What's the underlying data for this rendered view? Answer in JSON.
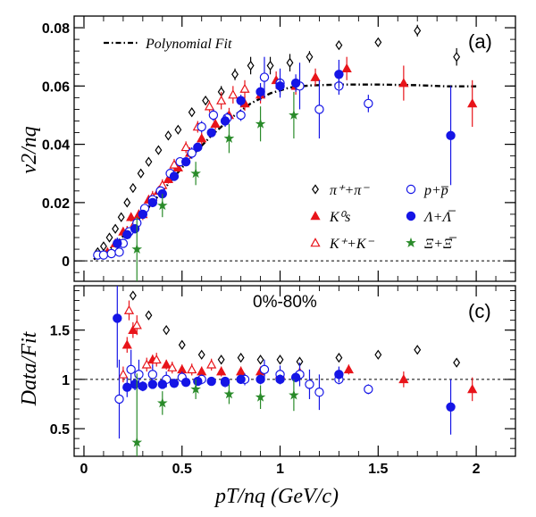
{
  "chart_data": [
    {
      "panel_label": "(a)",
      "type": "scatter",
      "ylabel": "v2/nq",
      "ylim": [
        -0.007,
        0.084
      ],
      "yticks": [
        "0",
        "0.02",
        "0.04",
        "0.06",
        "0.08"
      ],
      "xlim": [
        -0.05,
        2.2
      ],
      "fit_label": "Polynomial Fit",
      "fit_curve": {
        "x": [
          0.05,
          0.15,
          0.25,
          0.35,
          0.45,
          0.55,
          0.65,
          0.75,
          0.85,
          0.95,
          1.05,
          1.15,
          1.3,
          1.5,
          1.7,
          1.85,
          2.0
        ],
        "y": [
          0.0005,
          0.005,
          0.012,
          0.02,
          0.028,
          0.036,
          0.043,
          0.049,
          0.054,
          0.0575,
          0.0595,
          0.0602,
          0.0605,
          0.0605,
          0.0603,
          0.0599,
          0.0599
        ]
      },
      "series": [
        {
          "name": "π⁺+π⁻",
          "marker": "open-diamond",
          "color": "#000000",
          "x": [
            0.07,
            0.1,
            0.13,
            0.16,
            0.19,
            0.22,
            0.25,
            0.29,
            0.33,
            0.38,
            0.43,
            0.48,
            0.55,
            0.62,
            0.7,
            0.77,
            0.85,
            0.95,
            1.05,
            1.15,
            1.3,
            1.5,
            1.7,
            1.9
          ],
          "y": [
            0.003,
            0.005,
            0.008,
            0.011,
            0.015,
            0.02,
            0.025,
            0.03,
            0.034,
            0.038,
            0.043,
            0.045,
            0.051,
            0.055,
            0.058,
            0.064,
            0.067,
            0.067,
            0.068,
            0.07,
            0.074,
            0.075,
            0.079,
            0.07
          ],
          "err": [
            0.0005,
            0.0005,
            0.0005,
            0.0005,
            0.0005,
            0.0006,
            0.0006,
            0.0007,
            0.0007,
            0.0008,
            0.0009,
            0.001,
            0.0012,
            0.0015,
            0.002,
            0.002,
            0.003,
            0.003,
            0.003,
            0.002,
            0.001,
            0.001,
            0.002,
            0.003
          ]
        },
        {
          "name": "K⁰s",
          "marker": "filled-triangle",
          "color": "#e8141a",
          "x": [
            0.12,
            0.16,
            0.2,
            0.24,
            0.28,
            0.33,
            0.38,
            0.43,
            0.48,
            0.54,
            0.6,
            0.67,
            0.74,
            0.82,
            0.9,
            0.98,
            1.08,
            1.18,
            1.34,
            1.63,
            1.98
          ],
          "y": [
            0.003,
            0.006,
            0.01,
            0.015,
            0.016,
            0.021,
            0.024,
            0.028,
            0.032,
            0.037,
            0.042,
            0.047,
            0.05,
            0.054,
            0.057,
            0.062,
            0.06,
            0.063,
            0.066,
            0.061,
            0.054
          ],
          "err": [
            0.001,
            0.0015,
            0.0015,
            0.0015,
            0.0015,
            0.0015,
            0.0015,
            0.0015,
            0.0015,
            0.002,
            0.002,
            0.002,
            0.0025,
            0.0025,
            0.003,
            0.003,
            0.003,
            0.003,
            0.004,
            0.006,
            0.008
          ]
        },
        {
          "name": "K⁺+K⁻",
          "marker": "open-triangle",
          "color": "#e8141a",
          "x": [
            0.22,
            0.26,
            0.3,
            0.35,
            0.4,
            0.46,
            0.52,
            0.58,
            0.64,
            0.7,
            0.76,
            0.82
          ],
          "y": [
            0.01,
            0.013,
            0.016,
            0.022,
            0.026,
            0.033,
            0.039,
            0.046,
            0.053,
            0.055,
            0.057,
            0.059
          ],
          "err": [
            0.002,
            0.002,
            0.002,
            0.002,
            0.002,
            0.002,
            0.002,
            0.002,
            0.002,
            0.003,
            0.003,
            0.003
          ]
        },
        {
          "name": "p+p̅",
          "marker": "open-circle",
          "color": "#1515e6",
          "x": [
            0.07,
            0.1,
            0.14,
            0.18,
            0.2,
            0.23,
            0.27,
            0.31,
            0.35,
            0.39,
            0.44,
            0.49,
            0.55,
            0.6,
            0.66,
            0.73,
            0.8,
            0.92,
            1.0,
            1.1,
            1.2,
            1.3,
            1.45
          ],
          "y": [
            0.002,
            0.002,
            0.0025,
            0.003,
            0.006,
            0.01,
            0.013,
            0.018,
            0.021,
            0.024,
            0.03,
            0.034,
            0.037,
            0.046,
            0.05,
            0.049,
            0.05,
            0.063,
            0.061,
            0.06,
            0.052,
            0.06,
            0.054
          ],
          "err": [
            0.0008,
            0.0008,
            0.0008,
            0.001,
            0.001,
            0.001,
            0.0012,
            0.0015,
            0.0015,
            0.0015,
            0.0015,
            0.0015,
            0.002,
            0.002,
            0.002,
            0.002,
            0.002,
            0.007,
            0.005,
            0.008,
            0.01,
            0.003,
            0.003
          ]
        },
        {
          "name": "Λ+Λ̅",
          "marker": "filled-circle",
          "color": "#1515e6",
          "x": [
            0.17,
            0.22,
            0.26,
            0.3,
            0.35,
            0.4,
            0.46,
            0.52,
            0.58,
            0.65,
            0.72,
            0.8,
            0.9,
            1.0,
            1.08,
            1.3,
            1.87
          ],
          "y": [
            0.006,
            0.009,
            0.011,
            0.016,
            0.02,
            0.023,
            0.029,
            0.034,
            0.039,
            0.044,
            0.048,
            0.055,
            0.058,
            0.06,
            0.061,
            0.064,
            0.043
          ],
          "err": [
            0.002,
            0.0015,
            0.0015,
            0.0015,
            0.0015,
            0.0015,
            0.0015,
            0.0015,
            0.0015,
            0.0015,
            0.002,
            0.002,
            0.003,
            0.003,
            0.003,
            0.005,
            0.017
          ]
        },
        {
          "name": "Ξ+Ξ̅",
          "marker": "star",
          "color": "#2a8b2a",
          "x": [
            0.27,
            0.4,
            0.57,
            0.74,
            0.9,
            1.07
          ],
          "y": [
            0.004,
            0.019,
            0.03,
            0.042,
            0.047,
            0.05
          ],
          "err": [
            0.011,
            0.004,
            0.004,
            0.005,
            0.006,
            0.008
          ]
        }
      ]
    },
    {
      "panel_label": "(c)",
      "type": "scatter",
      "annotation": "0%-80%",
      "xlabel": "pT/nq (GeV/c)",
      "ylabel": "Data/Fit",
      "ylim": [
        0.22,
        1.95
      ],
      "yticks": [
        "0.5",
        "1",
        "1.5"
      ],
      "xlim": [
        -0.05,
        2.2
      ],
      "xticks": [
        "0",
        "0.5",
        "1",
        "1.5",
        "2"
      ],
      "reference_line": 1,
      "series": [
        {
          "name": "π⁺+π⁻",
          "marker": "open-diamond",
          "color": "#000000",
          "x": [
            0.25,
            0.33,
            0.42,
            0.5,
            0.6,
            0.7,
            0.8,
            0.9,
            1.0,
            1.1,
            1.3,
            1.5,
            1.7,
            1.9
          ],
          "y": [
            1.85,
            1.65,
            1.5,
            1.35,
            1.25,
            1.2,
            1.22,
            1.2,
            1.2,
            1.18,
            1.22,
            1.25,
            1.3,
            1.17
          ],
          "err": [
            0.02,
            0.02,
            0.02,
            0.02,
            0.02,
            0.02,
            0.03,
            0.04,
            0.04,
            0.04,
            0.03,
            0.03,
            0.03,
            0.04
          ]
        },
        {
          "name": "K⁰s",
          "marker": "filled-triangle",
          "color": "#e8141a",
          "x": [
            0.22,
            0.25,
            0.35,
            0.42,
            0.5,
            0.6,
            0.7,
            0.8,
            0.9,
            1.0,
            1.1,
            1.35,
            1.63,
            1.98
          ],
          "y": [
            1.35,
            1.5,
            1.2,
            1.15,
            1.1,
            1.08,
            1.08,
            1.08,
            1.08,
            1.05,
            1.07,
            1.1,
            1.0,
            0.9
          ],
          "err": [
            0.08,
            0.08,
            0.05,
            0.05,
            0.05,
            0.05,
            0.05,
            0.05,
            0.05,
            0.05,
            0.05,
            0.05,
            0.08,
            0.12
          ]
        },
        {
          "name": "K⁺+K⁻",
          "marker": "open-triangle",
          "color": "#e8141a",
          "x": [
            0.2,
            0.23,
            0.27,
            0.32,
            0.37,
            0.45,
            0.55,
            0.65
          ],
          "y": [
            1.05,
            1.7,
            1.55,
            1.15,
            1.2,
            1.12,
            1.1,
            1.15
          ],
          "err": [
            0.08,
            0.1,
            0.1,
            0.07,
            0.07,
            0.06,
            0.06,
            0.06
          ]
        },
        {
          "name": "p+p̅",
          "marker": "open-circle",
          "color": "#1515e6",
          "x": [
            0.18,
            0.24,
            0.28,
            0.35,
            0.42,
            0.5,
            0.6,
            0.72,
            0.82,
            0.92,
            1.0,
            1.1,
            1.15,
            1.2,
            1.3,
            1.45
          ],
          "y": [
            0.8,
            1.1,
            1.05,
            1.05,
            1.0,
            1.02,
            1.0,
            0.97,
            1.0,
            1.1,
            1.05,
            1.05,
            0.95,
            0.87,
            1.0,
            0.9
          ],
          "err": [
            0.4,
            0.2,
            0.15,
            0.1,
            0.08,
            0.06,
            0.05,
            0.05,
            0.06,
            0.1,
            0.09,
            0.12,
            0.15,
            0.18,
            0.05,
            0.05
          ]
        },
        {
          "name": "Λ+Λ̅",
          "marker": "filled-circle",
          "color": "#1515e6",
          "x": [
            0.17,
            0.22,
            0.26,
            0.3,
            0.35,
            0.4,
            0.46,
            0.52,
            0.58,
            0.65,
            0.72,
            0.8,
            0.9,
            1.0,
            1.08,
            1.3,
            1.87
          ],
          "y": [
            1.62,
            0.92,
            0.95,
            0.93,
            0.95,
            0.95,
            0.96,
            0.97,
            0.98,
            0.98,
            0.98,
            1.0,
            1.0,
            1.0,
            1.02,
            1.05,
            0.72
          ],
          "err": [
            0.5,
            0.1,
            0.06,
            0.05,
            0.04,
            0.04,
            0.04,
            0.04,
            0.04,
            0.04,
            0.04,
            0.04,
            0.05,
            0.05,
            0.05,
            0.08,
            0.28
          ]
        },
        {
          "name": "Ξ+Ξ̅",
          "marker": "star",
          "color": "#2a8b2a",
          "x": [
            0.27,
            0.4,
            0.57,
            0.74,
            0.9,
            1.07
          ],
          "y": [
            0.36,
            0.76,
            0.9,
            0.85,
            0.82,
            0.84
          ],
          "err": [
            0.7,
            0.12,
            0.1,
            0.1,
            0.12,
            0.16
          ]
        }
      ]
    }
  ]
}
